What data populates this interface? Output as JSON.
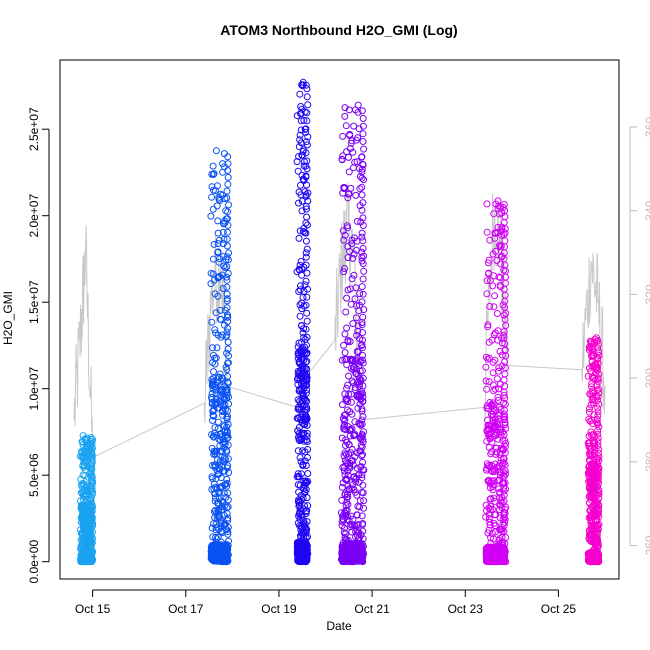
{
  "chart_data": {
    "type": "scatter",
    "title": "ATOM3 Northbound H2O_GMI (Log)",
    "xlabel": "Date",
    "ylabel": "H2O_GMI",
    "x_ticks": [
      "Oct 15",
      "Oct 17",
      "Oct 19",
      "Oct 21",
      "Oct 23",
      "Oct 25"
    ],
    "xlim": [
      "Oct 14.3",
      "Oct 26.3"
    ],
    "y_ticks": [
      "0.0e+00",
      "5.0e+06",
      "1.0e+07",
      "1.5e+07",
      "2.0e+07",
      "2.5e+07"
    ],
    "ylim": [
      -1000000,
      29000000
    ],
    "y2_ticks": [
      "260",
      "280",
      "300",
      "320",
      "340",
      "360"
    ],
    "y2lim": [
      252,
      376
    ],
    "grid": false,
    "marker": "open-circle",
    "series": [
      {
        "color": "#1aa3f0",
        "x_range": [
          14.75,
          14.98
        ],
        "x": [
          "Oct 14.8",
          "Oct 14.9",
          "Oct 15.0"
        ],
        "values": [
          200000,
          2500000,
          7300000
        ],
        "max": 7300000
      },
      {
        "color": "#0b52f2",
        "x_range": [
          17.55,
          17.9
        ],
        "x": [
          "Oct 17.6",
          "Oct 17.8",
          "Oct 17.9"
        ],
        "values": [
          300000,
          18500000,
          23800000
        ],
        "max": 23800000
      },
      {
        "color": "#1f06f5",
        "x_range": [
          19.4,
          19.6
        ],
        "x": [
          "Oct 19.4",
          "Oct 19.5",
          "Oct 19.6"
        ],
        "values": [
          200000,
          25500000,
          27800000
        ],
        "max": 27800000
      },
      {
        "color": "#7a00f5",
        "x_range": [
          20.35,
          20.8
        ],
        "x": [
          "Oct 20.4",
          "Oct 20.6",
          "Oct 20.8"
        ],
        "values": [
          200000,
          19000000,
          26500000
        ],
        "max": 26500000
      },
      {
        "color": "#d100f5",
        "x_range": [
          23.45,
          23.85
        ],
        "x": [
          "Oct 23.5",
          "Oct 23.7",
          "Oct 23.9"
        ],
        "values": [
          200000,
          16800000,
          21000000
        ],
        "max": 21000000
      },
      {
        "color": "#f500cc",
        "x_range": [
          25.65,
          25.85
        ],
        "x": [
          "Oct 25.7",
          "Oct 25.8",
          "Oct 25.9"
        ],
        "values": [
          200000,
          10000000,
          13000000
        ],
        "max": 13000000
      }
    ],
    "secondary_line": {
      "color": "#c8c8c8",
      "points": [
        [
          14.6,
          290
        ],
        [
          14.75,
          312
        ],
        [
          14.85,
          330
        ],
        [
          15.0,
          281
        ],
        [
          17.4,
          294
        ],
        [
          17.55,
          320
        ],
        [
          17.75,
          328
        ],
        [
          17.9,
          298
        ],
        [
          19.4,
          293
        ],
        [
          19.55,
          300
        ],
        [
          20.2,
          309
        ],
        [
          20.35,
          328
        ],
        [
          20.45,
          336
        ],
        [
          20.6,
          330
        ],
        [
          20.75,
          290
        ],
        [
          23.4,
          293
        ],
        [
          23.6,
          338
        ],
        [
          23.75,
          334
        ],
        [
          23.9,
          303
        ],
        [
          25.5,
          302
        ],
        [
          25.7,
          328
        ],
        [
          25.85,
          318
        ],
        [
          26.0,
          298
        ]
      ]
    }
  }
}
